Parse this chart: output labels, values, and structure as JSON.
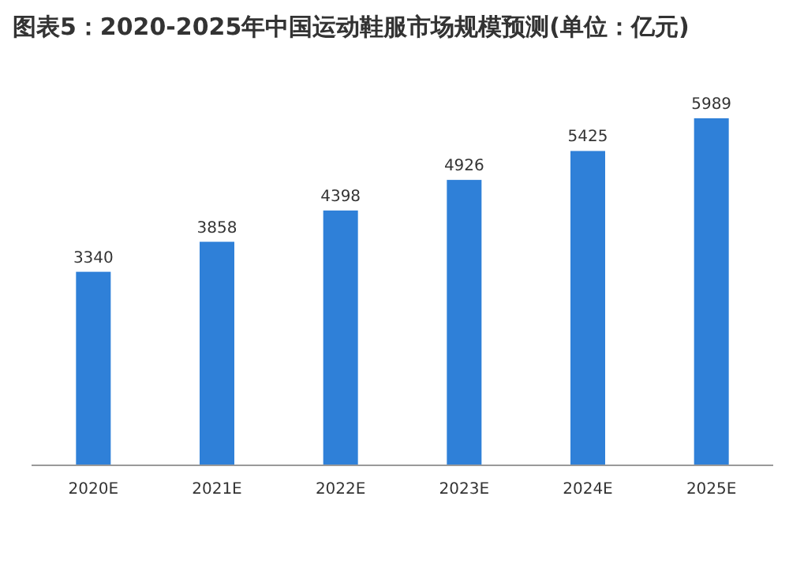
{
  "chart_data": {
    "type": "bar",
    "title": "图表5：2020-2025年中国运动鞋服市场规模预测(单位：亿元)",
    "categories": [
      "2020E",
      "2021E",
      "2022E",
      "2023E",
      "2024E",
      "2025E"
    ],
    "values": [
      3340,
      3858,
      4398,
      4926,
      5425,
      5989
    ],
    "color": "#2f80d8",
    "data_labels": true
  }
}
